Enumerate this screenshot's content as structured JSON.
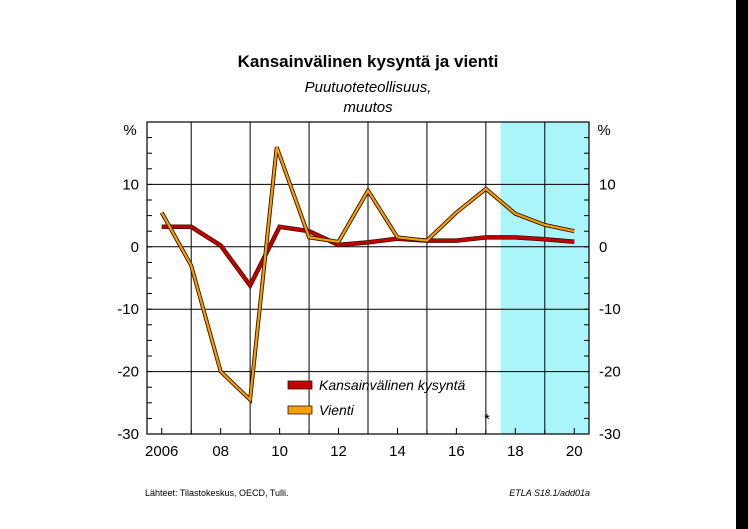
{
  "chart_data": {
    "type": "line",
    "title": "Kansainvälinen kysyntä ja vienti",
    "subtitle": [
      "Puutuoteteollisuus,",
      "muutos"
    ],
    "y_unit_left": "%",
    "y_unit_right": "%",
    "ylim": [
      -30,
      20
    ],
    "yticks": [
      10,
      0,
      -10,
      -20,
      -30
    ],
    "x": [
      2006,
      2007,
      2008,
      2009,
      2010,
      2011,
      2012,
      2013,
      2014,
      2015,
      2016,
      2017,
      2018,
      2019,
      2020
    ],
    "xlim": [
      2005.5,
      2020.5
    ],
    "xticks": [
      {
        "value": 2006,
        "label": "2006"
      },
      {
        "value": 2008,
        "label": "08"
      },
      {
        "value": 2010,
        "label": "10"
      },
      {
        "value": 2012,
        "label": "12"
      },
      {
        "value": 2014,
        "label": "14"
      },
      {
        "value": 2016,
        "label": "16"
      },
      {
        "value": 2018,
        "label": "18"
      },
      {
        "value": 2020,
        "label": "20"
      }
    ],
    "forecast_from": 2017.5,
    "forecast_color": "#aaf5fa",
    "series": [
      {
        "name": "Kansainvälinen kysyntä",
        "color": "#c00000",
        "x": [
          2006,
          2007,
          2008,
          2009,
          2010,
          2011,
          2012,
          2013,
          2014,
          2015,
          2016,
          2017,
          2018,
          2019,
          2020
        ],
        "values": [
          3.2,
          3.2,
          0.2,
          -6.2,
          3.2,
          2.5,
          0.3,
          0.7,
          1.3,
          1.0,
          1.0,
          1.5,
          1.5,
          1.2,
          0.8
        ]
      },
      {
        "name": "Vienti",
        "color": "#f5a000",
        "x": [
          2006,
          2007,
          2008,
          2009,
          2009.9,
          2011,
          2012,
          2013,
          2014,
          2015,
          2016,
          2017,
          2018,
          2019,
          2020
        ],
        "values": [
          5.5,
          -3.0,
          -20.0,
          -24.5,
          16.0,
          1.5,
          0.8,
          9.0,
          1.5,
          1.0,
          5.5,
          9.3,
          5.3,
          3.5,
          2.5
        ]
      }
    ],
    "grid": true,
    "legend_position": "bottom-center",
    "annotation": "*"
  },
  "footer": {
    "source": "Lähteet:  Tilastokeskus, OECD, Tulli.",
    "code": "ETLA S18.1/add01a"
  }
}
